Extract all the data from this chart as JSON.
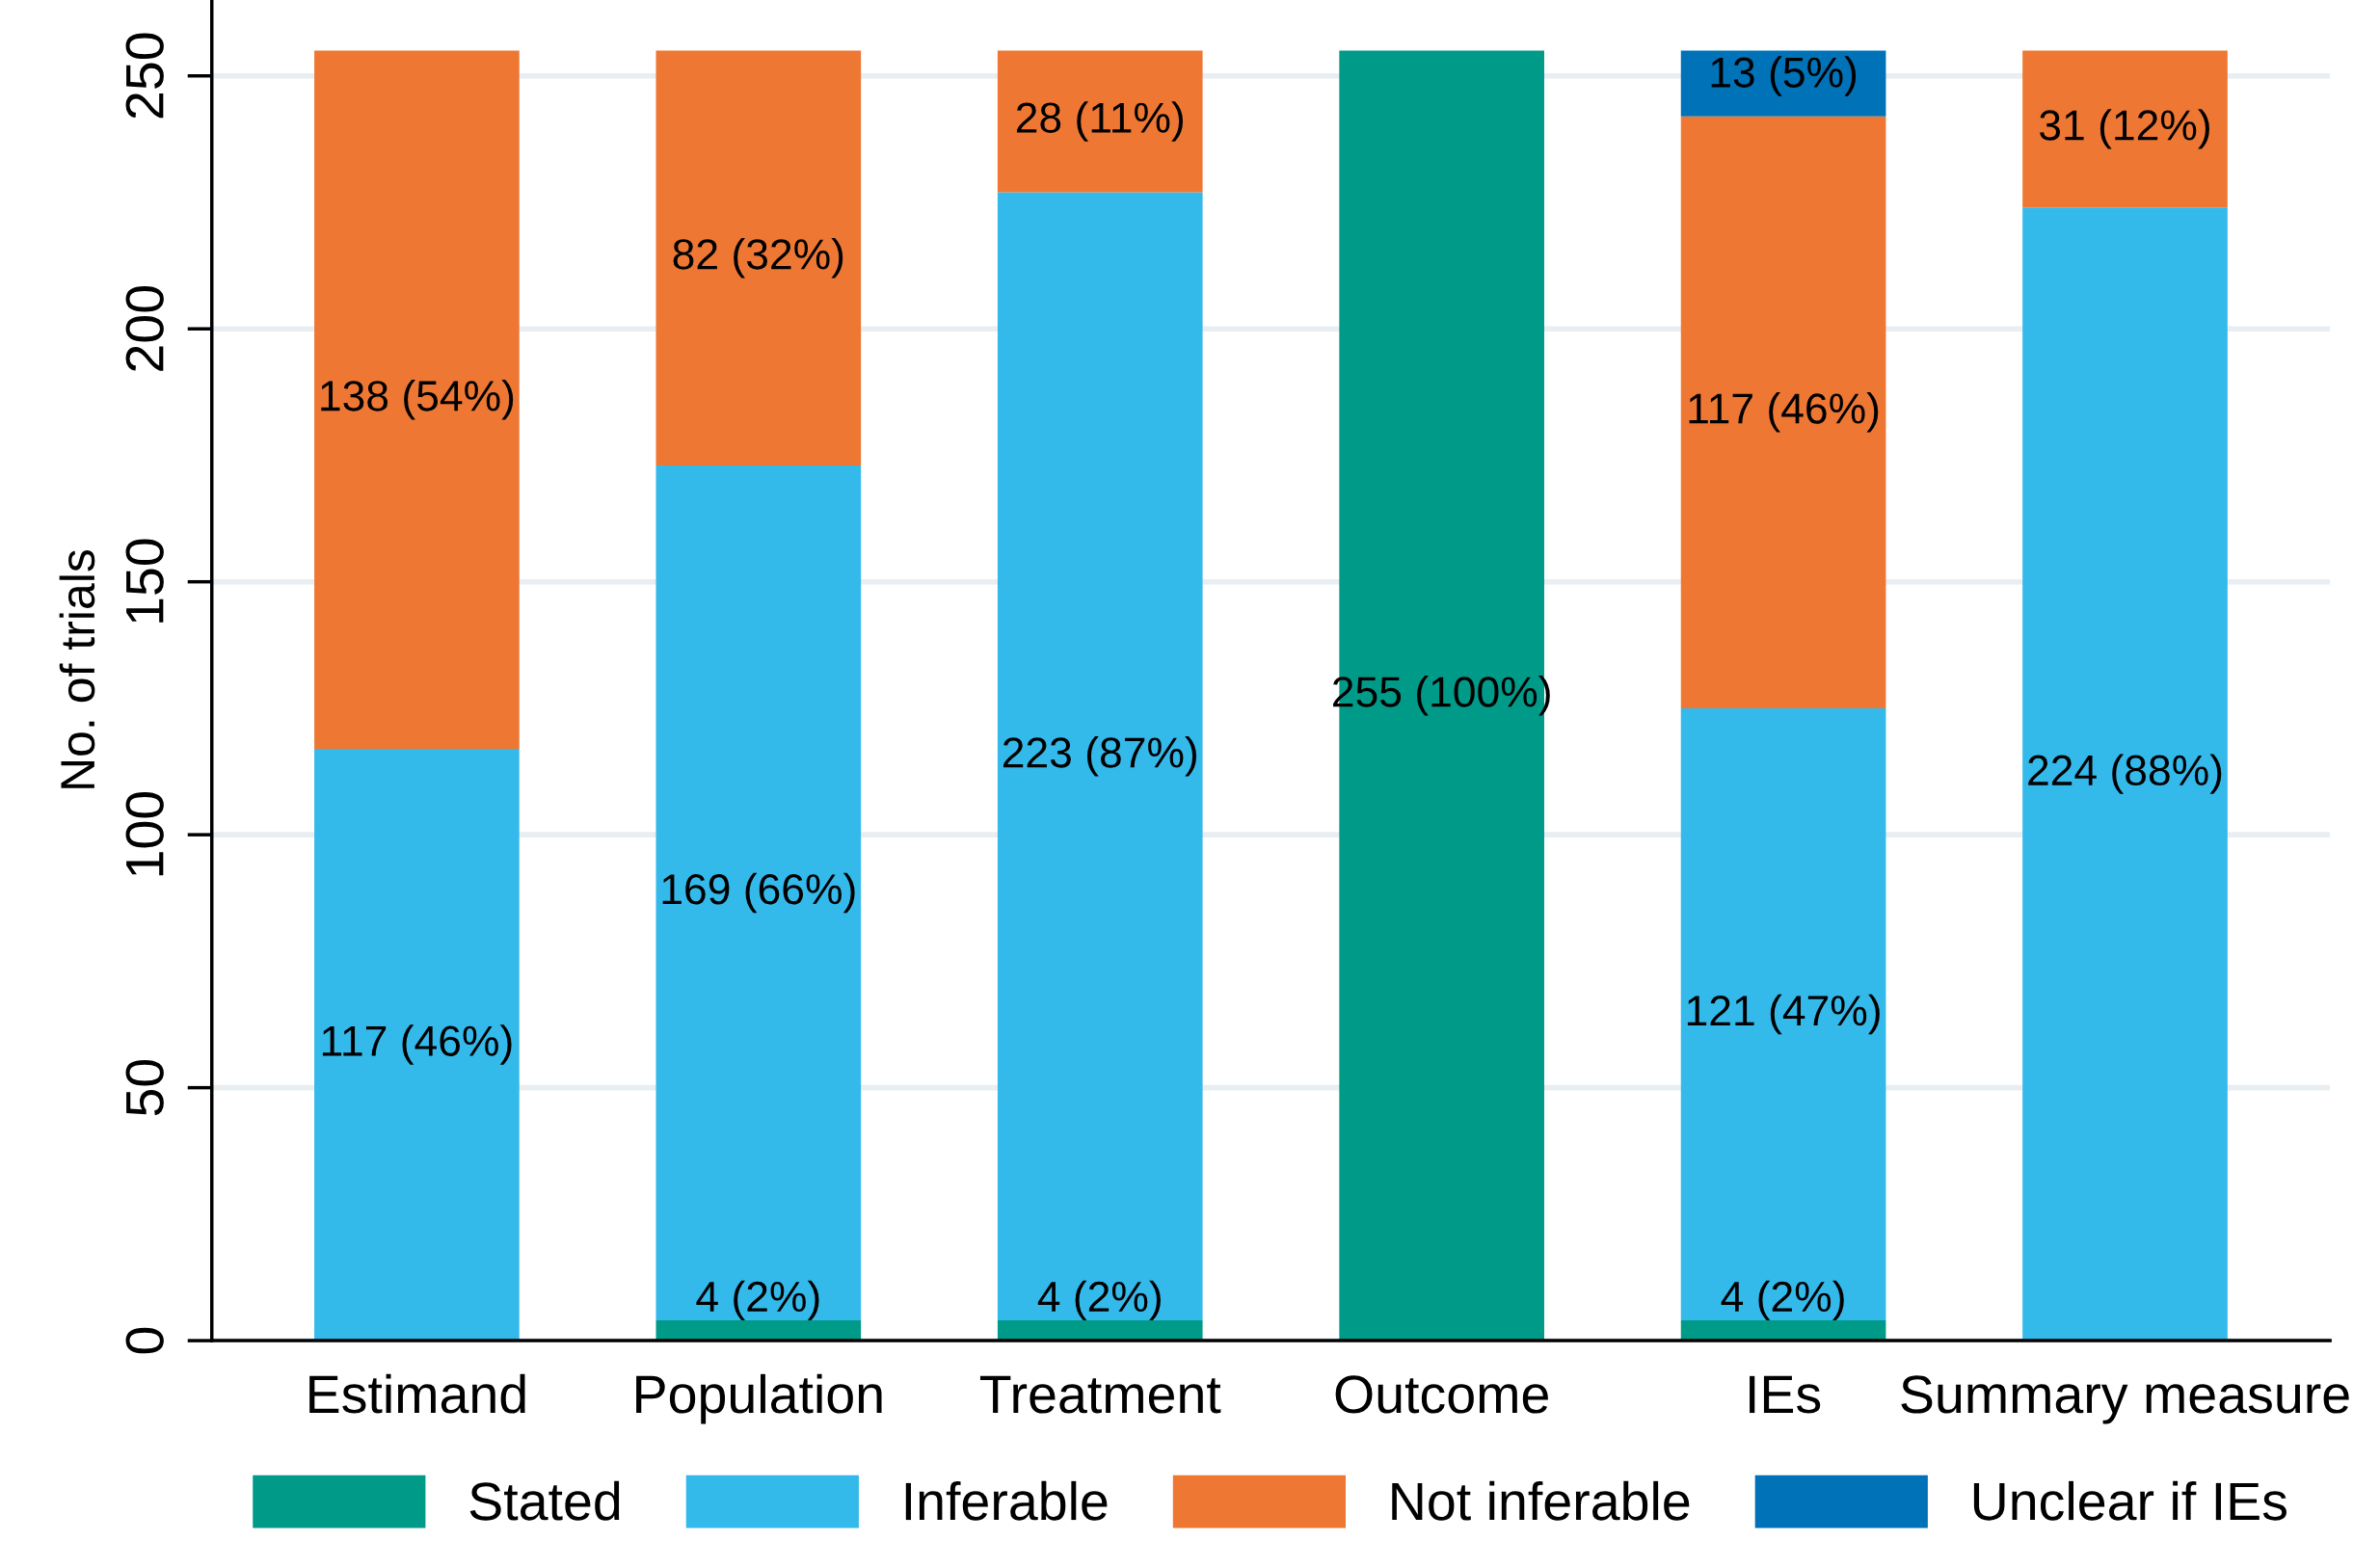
{
  "chart_data": {
    "type": "bar",
    "stacked": true,
    "ylabel": "No. of trials",
    "categories": [
      "Estimand",
      "Population",
      "Treatment",
      "Outcome",
      "IEs",
      "Summary measure"
    ],
    "series": [
      {
        "name": "Stated",
        "color": "#009a88",
        "values": [
          0,
          4,
          4,
          255,
          4,
          0
        ],
        "value_labels": [
          null,
          "4 (2%)",
          "4 (2%)",
          "255 (100%)",
          "4 (2%)",
          null
        ]
      },
      {
        "name": "Inferable",
        "color": "#34b9eb",
        "values": [
          117,
          169,
          223,
          0,
          121,
          224
        ],
        "value_labels": [
          "117 (46%)",
          "169 (66%)",
          "223 (87%)",
          null,
          "121 (47%)",
          "224 (88%)"
        ]
      },
      {
        "name": "Not inferable",
        "color": "#ee7733",
        "values": [
          138,
          82,
          28,
          0,
          117,
          31
        ],
        "value_labels": [
          "138 (54%)",
          "82 (32%)",
          "28 (11%)",
          null,
          "117 (46%)",
          "31 (12%)"
        ]
      },
      {
        "name": "Unclear if IEs",
        "color": "#0072b8",
        "values": [
          0,
          0,
          0,
          0,
          13,
          0
        ],
        "value_labels": [
          null,
          null,
          null,
          null,
          "13 (5%)",
          null
        ]
      }
    ],
    "ylim": [
      0,
      265
    ],
    "yticks": [
      0,
      50,
      100,
      150,
      200,
      250
    ],
    "grid": "y",
    "legend": "bottom"
  }
}
